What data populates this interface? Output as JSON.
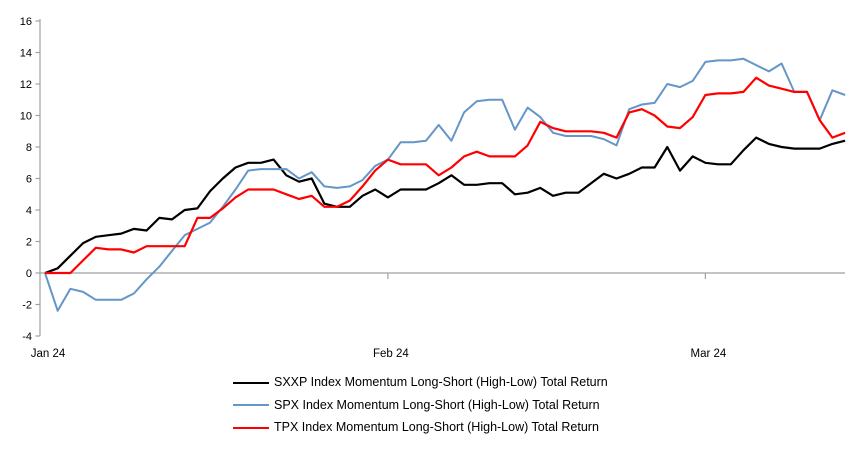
{
  "page": {
    "background": "#ffffff",
    "axis_color": "#a0a0a0",
    "text_color": "#000000"
  },
  "chart_data": {
    "type": "line",
    "title": "",
    "xlabel": "",
    "ylabel": "",
    "grid": "zero-line-only",
    "legend_position": "bottom-center",
    "y_axis": {
      "min": -4,
      "max": 16,
      "tick_step": 2,
      "ticks": [
        16,
        14,
        12,
        10,
        8,
        6,
        4,
        2,
        0,
        -2,
        -4
      ]
    },
    "x_axis": {
      "ticks": [
        {
          "label": "Jan 24",
          "day": 0
        },
        {
          "label": "Feb 24",
          "day": 27
        },
        {
          "label": "Mar 24",
          "day": 52
        }
      ]
    },
    "series": [
      {
        "key": "sxxp",
        "name": "SXXP Index Momentum Long-Short (High-Low) Total Return",
        "color": "#000000",
        "width": 2.2,
        "values": [
          0.0,
          0.3,
          1.1,
          1.9,
          2.3,
          2.4,
          2.5,
          2.8,
          2.7,
          3.5,
          3.4,
          4.0,
          4.1,
          5.2,
          6.0,
          6.7,
          7.0,
          7.0,
          7.2,
          6.2,
          5.8,
          6.0,
          4.4,
          4.2,
          4.2,
          4.9,
          5.3,
          4.8,
          5.3,
          5.3,
          5.3,
          5.7,
          6.2,
          5.6,
          5.6,
          5.7,
          5.7,
          5.0,
          5.1,
          5.4,
          4.9,
          5.1,
          5.1,
          5.7,
          6.3,
          6.0,
          6.3,
          6.7,
          6.7,
          8.0,
          6.5,
          7.4,
          7.0,
          6.9,
          6.9,
          7.8,
          8.6,
          8.2,
          8.0,
          7.9,
          7.9,
          7.9,
          8.2,
          8.4
        ]
      },
      {
        "key": "spx",
        "name": "SPX Index Momentum Long-Short (High-Low) Total Return",
        "color": "#6496c8",
        "width": 2.0,
        "values": [
          0.0,
          -2.4,
          -1.0,
          -1.2,
          -1.7,
          -1.7,
          -1.7,
          -1.3,
          -0.4,
          0.4,
          1.4,
          2.4,
          2.8,
          3.2,
          4.2,
          5.3,
          6.5,
          6.6,
          6.6,
          6.6,
          6.0,
          6.4,
          5.5,
          5.4,
          5.5,
          5.9,
          6.8,
          7.2,
          8.3,
          8.3,
          8.4,
          9.4,
          8.4,
          10.2,
          10.9,
          11.0,
          11.0,
          9.1,
          10.5,
          9.9,
          8.9,
          8.7,
          8.7,
          8.7,
          8.5,
          8.1,
          10.4,
          10.7,
          10.8,
          12.0,
          11.8,
          12.2,
          13.4,
          13.5,
          13.5,
          13.6,
          13.2,
          12.8,
          13.3,
          11.5,
          11.5,
          9.7,
          11.6,
          11.3
        ]
      },
      {
        "key": "tpx",
        "name": "TPX Index Momentum Long-Short (High-Low) Total Return",
        "color": "#ff0000",
        "width": 2.2,
        "values": [
          0.0,
          0.0,
          0.0,
          0.8,
          1.6,
          1.5,
          1.5,
          1.3,
          1.7,
          1.7,
          1.7,
          1.7,
          3.5,
          3.5,
          4.1,
          4.8,
          5.3,
          5.3,
          5.3,
          5.0,
          4.7,
          4.9,
          4.2,
          4.2,
          4.6,
          5.5,
          6.5,
          7.2,
          6.9,
          6.9,
          6.9,
          6.2,
          6.7,
          7.4,
          7.7,
          7.4,
          7.4,
          7.4,
          8.1,
          9.6,
          9.2,
          9.0,
          9.0,
          9.0,
          8.9,
          8.6,
          10.2,
          10.4,
          10.0,
          9.3,
          9.2,
          9.9,
          11.3,
          11.4,
          11.4,
          11.5,
          12.4,
          11.9,
          11.7,
          11.5,
          11.5,
          9.7,
          8.6,
          8.9
        ]
      }
    ]
  }
}
